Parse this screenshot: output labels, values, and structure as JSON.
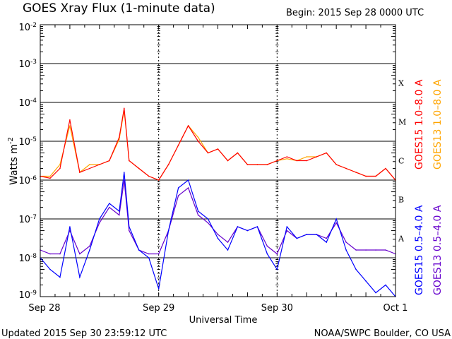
{
  "chart_data": {
    "type": "line",
    "title": "GOES Xray Flux (1-minute data)",
    "begin_label": "Begin:  2015 Sep 28 0000 UTC",
    "ylabel": "Watts m",
    "ylabel_exp": "-2",
    "xlabel": "Universal Time",
    "y_scale": "log",
    "ylim": [
      1e-09,
      0.01
    ],
    "y_ticks": [
      {
        "base": "10",
        "exp": "-2",
        "log": -2
      },
      {
        "base": "10",
        "exp": "-3",
        "log": -3
      },
      {
        "base": "10",
        "exp": "-4",
        "log": -4
      },
      {
        "base": "10",
        "exp": "-5",
        "log": -5
      },
      {
        "base": "10",
        "exp": "-6",
        "log": -6
      },
      {
        "base": "10",
        "exp": "-7",
        "log": -7
      },
      {
        "base": "10",
        "exp": "-8",
        "log": -8
      },
      {
        "base": "10",
        "exp": "-9",
        "log": -9
      }
    ],
    "x_unit": "hours since 2015 Sep 28 0000 UTC",
    "xlim": [
      0,
      72
    ],
    "x_ticks": [
      {
        "label": "Sep 28",
        "hour": 0
      },
      {
        "label": "Sep 29",
        "hour": 24
      },
      {
        "label": "Sep 30",
        "hour": 48
      },
      {
        "label": "Oct 1",
        "hour": 72
      }
    ],
    "flare_classes": [
      {
        "label": "X",
        "log": -3.5
      },
      {
        "label": "M",
        "log": -4.5
      },
      {
        "label": "C",
        "log": -5.5
      },
      {
        "label": "B",
        "log": -6.5
      },
      {
        "label": "A",
        "log": -7.5
      }
    ],
    "x_hours": [
      0,
      2,
      4,
      6,
      8,
      10,
      12,
      14,
      16,
      17,
      18,
      20,
      22,
      24,
      26,
      28,
      30,
      32,
      34,
      36,
      38,
      40,
      42,
      44,
      46,
      48,
      50,
      52,
      54,
      56,
      58,
      60,
      62,
      64,
      66,
      68,
      70,
      72
    ],
    "series": [
      {
        "name": "GOES13 1.0-8.0 A",
        "color": "#ffa500",
        "log_values": [
          -5.9,
          -5.9,
          -5.6,
          -4.6,
          -5.8,
          -5.6,
          -5.6,
          -5.5,
          -4.95,
          -4.2,
          -5.5,
          -5.7,
          -5.9,
          -6.0,
          -5.6,
          -5.1,
          -4.6,
          -4.9,
          -5.3,
          -5.2,
          -5.5,
          -5.3,
          -5.6,
          -5.6,
          -5.6,
          -5.5,
          -5.45,
          -5.5,
          -5.4,
          -5.4,
          -5.3,
          -5.6,
          -5.7,
          -5.8,
          -5.9,
          -5.9,
          -5.7,
          -6.0
        ]
      },
      {
        "name": "GOES15 1.0-8.0 A",
        "color": "#ff0000",
        "log_values": [
          -5.9,
          -5.95,
          -5.7,
          -4.45,
          -5.8,
          -5.7,
          -5.6,
          -5.5,
          -4.9,
          -4.15,
          -5.5,
          -5.7,
          -5.9,
          -6.0,
          -5.6,
          -5.1,
          -4.6,
          -5.0,
          -5.3,
          -5.2,
          -5.5,
          -5.3,
          -5.6,
          -5.6,
          -5.6,
          -5.5,
          -5.4,
          -5.5,
          -5.5,
          -5.4,
          -5.3,
          -5.6,
          -5.7,
          -5.8,
          -5.9,
          -5.9,
          -5.7,
          -6.0
        ]
      },
      {
        "name": "GOES13 0.5-4.0 A",
        "color": "#6600cc",
        "log_values": [
          -7.8,
          -7.9,
          -7.9,
          -7.3,
          -7.9,
          -7.7,
          -7.1,
          -6.7,
          -6.9,
          -6.0,
          -7.3,
          -7.8,
          -7.9,
          -7.9,
          -7.3,
          -6.4,
          -6.2,
          -6.9,
          -7.1,
          -7.4,
          -7.6,
          -7.2,
          -7.3,
          -7.2,
          -7.7,
          -7.9,
          -7.3,
          -7.5,
          -7.4,
          -7.4,
          -7.5,
          -7.1,
          -7.6,
          -7.8,
          -7.8,
          -7.8,
          -7.8,
          -7.9
        ]
      },
      {
        "name": "GOES15 0.5-4.0 A",
        "color": "#0000ff",
        "log_values": [
          -8.0,
          -8.3,
          -8.5,
          -7.2,
          -8.5,
          -7.8,
          -7.0,
          -6.6,
          -6.8,
          -5.8,
          -7.2,
          -7.8,
          -8.0,
          -8.8,
          -7.3,
          -6.2,
          -6.0,
          -6.8,
          -7.0,
          -7.5,
          -7.8,
          -7.2,
          -7.3,
          -7.2,
          -7.9,
          -8.3,
          -7.2,
          -7.5,
          -7.4,
          -7.4,
          -7.6,
          -7.0,
          -7.8,
          -8.3,
          -8.6,
          -8.9,
          -8.7,
          -9.0
        ]
      }
    ],
    "legend": [
      {
        "label": "GOES15 1.0–8.0 A",
        "color": "#ff0000"
      },
      {
        "label": "GOES13 1.0–8.0 A",
        "color": "#ffa500"
      },
      {
        "label": "GOES15 0.5–4.0 A",
        "color": "#0000ff"
      },
      {
        "label": "GOES13 0.5–4.0 A",
        "color": "#6600cc"
      }
    ],
    "legend_placement": "right",
    "grid": true
  },
  "footer": {
    "updated": "Updated 2015 Sep 30 23:59:12 UTC",
    "credit": "NOAA/SWPC Boulder, CO USA"
  }
}
